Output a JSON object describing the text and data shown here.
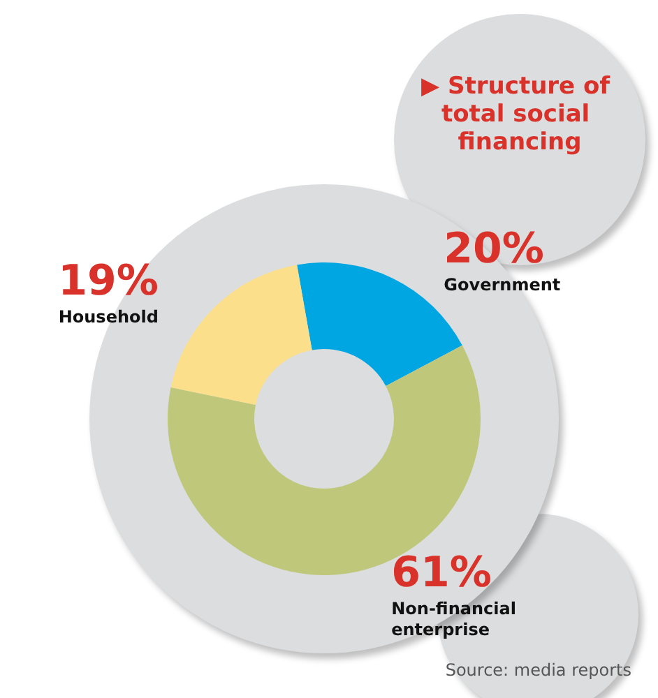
{
  "chart_data": {
    "type": "donut",
    "title": "▶ Structure of total social financing",
    "categories": [
      "Government",
      "Non-financial enterprise",
      "Household"
    ],
    "values": [
      20,
      61,
      19
    ],
    "value_labels": [
      "20%",
      "61%",
      "19%"
    ],
    "colors": [
      "#00a6e2",
      "#bfc77a",
      "#fbdf8a"
    ],
    "annotations": [
      "Source: media reports"
    ]
  }
}
